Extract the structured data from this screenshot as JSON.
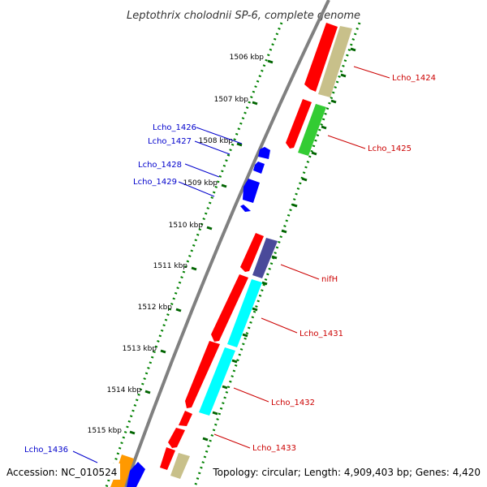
{
  "title": "Leptothrix cholodnii SP-6, complete genome",
  "footer": {
    "accession": "Accession: NC_010524",
    "topology": "Topology: circular; Length: 4,909,403 bp; Genes: 4,420"
  },
  "colors": {
    "backbone": "#808080",
    "ticks": "#008000",
    "label_reverse": "#0000cc",
    "label_forward": "#cc0000",
    "red": "#ff0000",
    "green": "#33cc33",
    "khaki": "#c8c08a",
    "navy": "#4a4a9a",
    "cyan": "#00ffff",
    "blue": "#0000ff",
    "orange": "#ff9900"
  },
  "scale": {
    "tick_labels": [
      "1506 kbp",
      "1507 kbp",
      "1508 kbp",
      "1509 kbp",
      "1510 kbp",
      "1511 kbp",
      "1512 kbp",
      "1513 kbp",
      "1514 kbp",
      "1515 kbp"
    ]
  },
  "genes": {
    "lcho_1424": "Lcho_1424",
    "lcho_1425": "Lcho_1425",
    "lcho_1426": "Lcho_1426",
    "lcho_1427": "Lcho_1427",
    "lcho_1428": "Lcho_1428",
    "lcho_1429": "Lcho_1429",
    "nifh": "nifH",
    "lcho_1431": "Lcho_1431",
    "lcho_1432": "Lcho_1432",
    "lcho_1433": "Lcho_1433",
    "lcho_1436": "Lcho_1436"
  }
}
